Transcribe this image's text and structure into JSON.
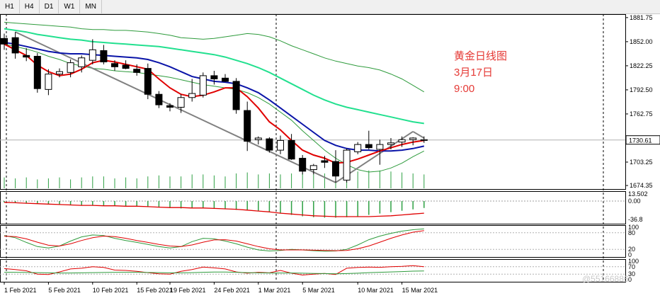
{
  "toolbar": {
    "timeframes": [
      "H1",
      "H4",
      "D1",
      "W1",
      "MN"
    ]
  },
  "annotation": {
    "line1": "黄金日线图",
    "line2": "3月17日",
    "line3": "9:00",
    "color": "#e53935"
  },
  "watermark": "@55166886",
  "colors": {
    "bull": "#000000",
    "bear": "#000000",
    "ma_red": "#e00000",
    "ma_blue": "#0a14a8",
    "ma_cyan": "#22e08f",
    "envelope": "#2e9b3c",
    "trendline": "#808080",
    "volume": "#2ea043",
    "price_marker": "#000000"
  },
  "chart_data": [
    {
      "type": "candlestick",
      "title": "",
      "current_price": "1730.61",
      "y_ticks": [
        "1881.75",
        "1852.00",
        "1822.25",
        "1792.50",
        "1762.75",
        "1730.61",
        "1703.25",
        "1674.35"
      ],
      "ylim": [
        1670,
        1886
      ],
      "x_ticks": [
        "1 Feb 2021",
        "5 Feb 2021",
        "10 Feb 2021",
        "15 Feb 2021",
        "19 Feb 2021",
        "24 Feb 2021",
        "1 Mar 2021",
        "5 Mar 2021",
        "10 Mar 2021",
        "15 Mar 2021"
      ],
      "candles": [
        {
          "o": 1856,
          "h": 1862,
          "l": 1842,
          "c": 1849
        },
        {
          "o": 1857,
          "h": 1864,
          "l": 1831,
          "c": 1838
        },
        {
          "o": 1835,
          "h": 1844,
          "l": 1828,
          "c": 1833
        },
        {
          "o": 1834,
          "h": 1838,
          "l": 1789,
          "c": 1794
        },
        {
          "o": 1793,
          "h": 1818,
          "l": 1786,
          "c": 1812
        },
        {
          "o": 1812,
          "h": 1819,
          "l": 1808,
          "c": 1815
        },
        {
          "o": 1814,
          "h": 1830,
          "l": 1808,
          "c": 1826
        },
        {
          "o": 1821,
          "h": 1835,
          "l": 1814,
          "c": 1832
        },
        {
          "o": 1829,
          "h": 1855,
          "l": 1824,
          "c": 1842
        },
        {
          "o": 1841,
          "h": 1848,
          "l": 1824,
          "c": 1827
        },
        {
          "o": 1825,
          "h": 1829,
          "l": 1816,
          "c": 1821
        },
        {
          "o": 1823,
          "h": 1829,
          "l": 1818,
          "c": 1819
        },
        {
          "o": 1818,
          "h": 1824,
          "l": 1810,
          "c": 1814
        },
        {
          "o": 1819,
          "h": 1825,
          "l": 1781,
          "c": 1787
        },
        {
          "o": 1787,
          "h": 1791,
          "l": 1770,
          "c": 1774
        },
        {
          "o": 1773,
          "h": 1776,
          "l": 1766,
          "c": 1771
        },
        {
          "o": 1771,
          "h": 1787,
          "l": 1764,
          "c": 1783
        },
        {
          "o": 1783,
          "h": 1806,
          "l": 1778,
          "c": 1788
        },
        {
          "o": 1786,
          "h": 1814,
          "l": 1783,
          "c": 1810
        },
        {
          "o": 1810,
          "h": 1816,
          "l": 1799,
          "c": 1806
        },
        {
          "o": 1807,
          "h": 1812,
          "l": 1802,
          "c": 1803
        },
        {
          "o": 1803,
          "h": 1807,
          "l": 1763,
          "c": 1768
        },
        {
          "o": 1767,
          "h": 1778,
          "l": 1717,
          "c": 1729
        },
        {
          "o": 1731,
          "h": 1735,
          "l": 1725,
          "c": 1733
        },
        {
          "o": 1732,
          "h": 1734,
          "l": 1715,
          "c": 1718
        },
        {
          "o": 1718,
          "h": 1736,
          "l": 1713,
          "c": 1730
        },
        {
          "o": 1730,
          "h": 1738,
          "l": 1706,
          "c": 1707
        },
        {
          "o": 1708,
          "h": 1712,
          "l": 1688,
          "c": 1692
        },
        {
          "o": 1694,
          "h": 1701,
          "l": 1688,
          "c": 1699
        },
        {
          "o": 1705,
          "h": 1711,
          "l": 1696,
          "c": 1703
        },
        {
          "o": 1704,
          "h": 1718,
          "l": 1678,
          "c": 1686
        },
        {
          "o": 1681,
          "h": 1720,
          "l": 1678,
          "c": 1718
        },
        {
          "o": 1716,
          "h": 1728,
          "l": 1713,
          "c": 1725
        },
        {
          "o": 1725,
          "h": 1742,
          "l": 1719,
          "c": 1721
        },
        {
          "o": 1719,
          "h": 1731,
          "l": 1700,
          "c": 1725
        },
        {
          "o": 1725,
          "h": 1733,
          "l": 1719,
          "c": 1727
        },
        {
          "o": 1728,
          "h": 1735,
          "l": 1722,
          "c": 1731
        },
        {
          "o": 1731,
          "h": 1734,
          "l": 1724,
          "c": 1733
        },
        {
          "o": 1730,
          "h": 1735,
          "l": 1727,
          "c": 1731
        }
      ],
      "ma_red": [
        1849,
        1842,
        1835,
        1823,
        1815,
        1810,
        1812,
        1818,
        1826,
        1829,
        1827,
        1824,
        1821,
        1818,
        1806,
        1795,
        1787,
        1784,
        1786,
        1790,
        1795,
        1795,
        1784,
        1770,
        1753,
        1743,
        1730,
        1718,
        1712,
        1708,
        1702,
        1703,
        1707,
        1712,
        1717,
        1721,
        1725,
        1728,
        1730
      ],
      "ma_blue": [
        1851,
        1849,
        1846,
        1843,
        1840,
        1838,
        1837,
        1837,
        1836,
        1835,
        1834,
        1833,
        1832,
        1830,
        1826,
        1821,
        1815,
        1809,
        1806,
        1803,
        1802,
        1800,
        1795,
        1789,
        1780,
        1770,
        1760,
        1750,
        1740,
        1730,
        1724,
        1720,
        1718,
        1718,
        1717,
        1717,
        1718,
        1720,
        1723
      ],
      "ma_cyan": [
        1868,
        1866,
        1864,
        1861,
        1859,
        1857,
        1855,
        1854,
        1852,
        1851,
        1850,
        1849,
        1848,
        1847,
        1846,
        1844,
        1842,
        1840,
        1838,
        1836,
        1833,
        1829,
        1825,
        1820,
        1814,
        1807,
        1800,
        1793,
        1786,
        1780,
        1775,
        1771,
        1768,
        1765,
        1762,
        1759,
        1756,
        1753,
        1751
      ],
      "env_upper": [
        1876,
        1875,
        1874,
        1873,
        1872,
        1871,
        1870,
        1868,
        1867,
        1867,
        1866,
        1866,
        1865,
        1864,
        1862,
        1860,
        1857,
        1856,
        1855,
        1856,
        1858,
        1860,
        1862,
        1861,
        1858,
        1853,
        1847,
        1842,
        1837,
        1832,
        1828,
        1825,
        1822,
        1820,
        1817,
        1812,
        1806,
        1798,
        1790
      ],
      "env_lower": [
        1849,
        1846,
        1843,
        1839,
        1834,
        1830,
        1825,
        1822,
        1819,
        1818,
        1816,
        1815,
        1814,
        1812,
        1810,
        1808,
        1805,
        1802,
        1799,
        1797,
        1795,
        1793,
        1789,
        1783,
        1775,
        1765,
        1755,
        1742,
        1730,
        1718,
        1708,
        1700,
        1694,
        1691,
        1692,
        1696,
        1702,
        1710,
        1717
      ],
      "volume": [
        0.55,
        0.5,
        0.55,
        0.45,
        0.5,
        0.55,
        0.45,
        0.55,
        0.6,
        0.6,
        0.5,
        0.55,
        0.5,
        0.6,
        0.65,
        0.6,
        0.6,
        0.7,
        0.7,
        0.65,
        0.6,
        0.75,
        0.8,
        0.7,
        0.75,
        0.7,
        0.75,
        0.75,
        0.7,
        0.75,
        0.8,
        0.85,
        0.85,
        0.9,
        0.9,
        0.85,
        0.8,
        0.75,
        0.7
      ]
    },
    {
      "type": "macd",
      "y_ticks": [
        "13.502",
        "0.00",
        "-36.8"
      ],
      "histogram": [
        -3,
        -4,
        -5,
        -6,
        -7,
        -8,
        -8,
        -9,
        -10,
        -10,
        -11,
        -11,
        -12,
        -13,
        -14,
        -15,
        -16,
        -16,
        -16,
        -16,
        -17,
        -19,
        -20,
        -22,
        -24,
        -27,
        -30,
        -33,
        -35,
        -36,
        -36,
        -35,
        -33,
        -30,
        -27,
        -24,
        -21,
        -18,
        -15
      ],
      "signal": [
        -3,
        -4,
        -5,
        -6,
        -7,
        -8,
        -9,
        -10,
        -10,
        -11,
        -11,
        -12,
        -12,
        -13,
        -14,
        -15,
        -15,
        -16,
        -16,
        -17,
        -18,
        -19,
        -21,
        -23,
        -25,
        -28,
        -30,
        -32,
        -34,
        -35,
        -36,
        -36,
        -36,
        -36,
        -35,
        -34,
        -32,
        -30,
        -28
      ]
    },
    {
      "type": "stochastic",
      "y_ticks": [
        "100",
        "80",
        "20",
        "0"
      ],
      "k": [
        70,
        62,
        45,
        30,
        25,
        32,
        50,
        65,
        72,
        70,
        60,
        52,
        45,
        38,
        30,
        25,
        30,
        48,
        60,
        58,
        50,
        40,
        28,
        18,
        14,
        16,
        20,
        18,
        15,
        13,
        14,
        20,
        36,
        55,
        68,
        78,
        86,
        91,
        94
      ],
      "d": [
        68,
        66,
        58,
        46,
        35,
        32,
        40,
        52,
        62,
        68,
        66,
        60,
        52,
        45,
        38,
        32,
        30,
        36,
        46,
        54,
        55,
        50,
        40,
        30,
        22,
        18,
        18,
        18,
        17,
        16,
        15,
        16,
        22,
        32,
        46,
        60,
        72,
        82,
        88
      ]
    },
    {
      "type": "rsi",
      "y_ticks": [
        "100",
        "70",
        "30",
        "0"
      ],
      "main": [
        60,
        55,
        48,
        30,
        28,
        42,
        58,
        62,
        70,
        66,
        52,
        50,
        45,
        38,
        32,
        30,
        45,
        55,
        68,
        64,
        58,
        42,
        35,
        40,
        37,
        50,
        35,
        25,
        30,
        34,
        28,
        62,
        66,
        68,
        67,
        70,
        72,
        76,
        70
      ],
      "signal": [
        40,
        40,
        39,
        38,
        37,
        36,
        36,
        37,
        38,
        39,
        40,
        40,
        40,
        39,
        38,
        37,
        37,
        38,
        40,
        41,
        41,
        40,
        38,
        37,
        36,
        36,
        36,
        35,
        34,
        33,
        32,
        33,
        35,
        38,
        40,
        42,
        44,
        46,
        47
      ]
    }
  ]
}
